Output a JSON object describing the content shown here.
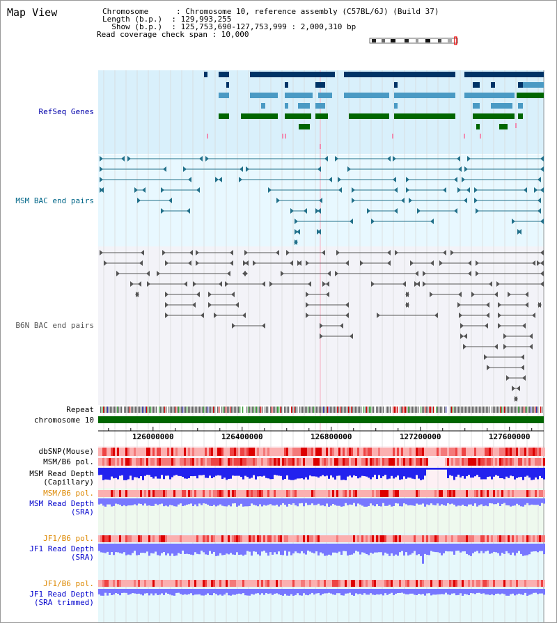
{
  "title": "Map View",
  "header": {
    "line1": "Chromosome      : Chromosome 10, reference assembly (C57BL/6J) (Build 37)",
    "line2": "Length (b.p.)  : 129,993,255",
    "line3": "  Show (b.p.)  : 125,753,690-127,753,999 : 2,000,310 bp",
    "line4": "Read coverage check span : 10,000"
  },
  "view": {
    "start": 125753690,
    "end": 127753999,
    "chrom_length": 129993255
  },
  "axis": {
    "ticks": [
      "126000000",
      "126400000",
      "126800000",
      "127200000",
      "127600000"
    ]
  },
  "tracks": {
    "refseq": "RefSeq Genes",
    "msm_bac": "MSM BAC end pairs",
    "b6n_bac": "B6N BAC end pairs",
    "repeat": "Repeat",
    "chromosome": "chromosome 10",
    "dbsnp": "dbSNP(Mouse)",
    "msm_pol": "MSM/B6 pol.",
    "msm_depth_cap_1": "MSM Read Depth",
    "msm_depth_cap_2": "(Capillary)",
    "msm_pol_sra": "MSM/B6 pol.",
    "msm_depth_sra_1": "MSM Read Depth",
    "msm_depth_sra_2": "(SRA)",
    "jf1_pol_sra": "JF1/B6 pol.",
    "jf1_depth_sra_1": "JF1 Read Depth",
    "jf1_depth_sra_2": "(SRA)",
    "jf1_pol_trim": "JF1/B6 pol.",
    "jf1_depth_trim_1": "JF1 Read Depth",
    "jf1_depth_trim_2": "(SRA trimmed)"
  },
  "colors": {
    "refseq_label": "#0000aa",
    "msm_label": "#006688",
    "orange_label": "#dd8800",
    "blue_label": "#0000cc",
    "gene_dark": "#003366",
    "gene_mid": "#4a9ac4",
    "gene_green": "#006600",
    "msm_pair": "#22708a",
    "b6n_pair": "#555555",
    "chromosome": "#006600",
    "depth": "#2222ee",
    "depth_light": "#7777ff"
  }
}
